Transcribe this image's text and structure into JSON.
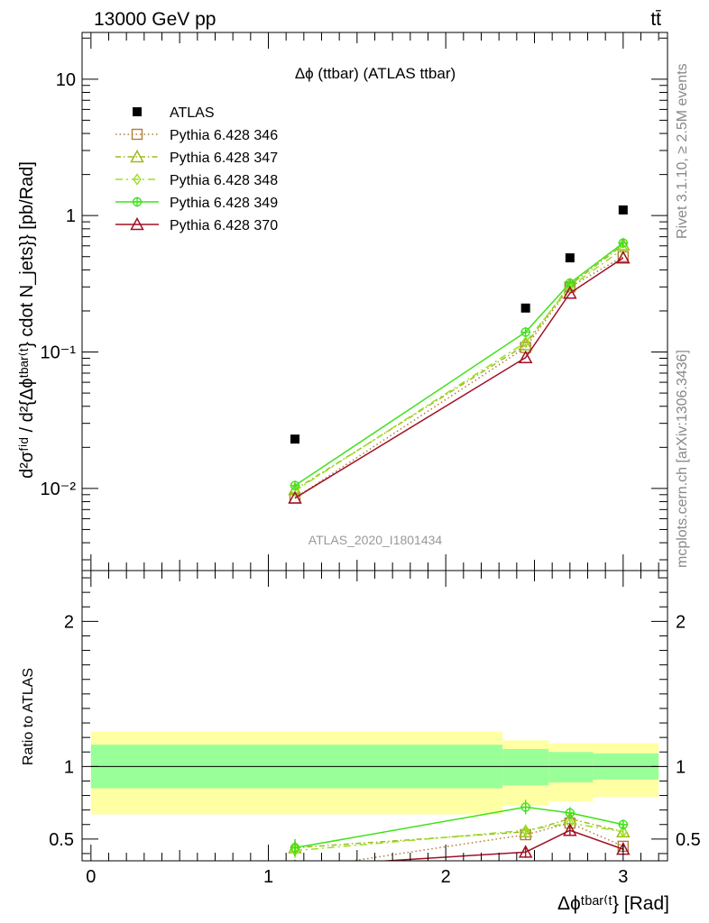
{
  "header": {
    "left": "13000 GeV pp",
    "right": "tt̄"
  },
  "side_labels": {
    "rivet": "Rivet 3.1.10, ≥ 2.5M events",
    "mcplots": "mcplots.cern.ch [arXiv:1306.3436]"
  },
  "main_plot": {
    "title": "Δϕ (ttbar) (ATLAS ttbar)",
    "watermark": "ATLAS_2020_I1801434",
    "ylabel": "d²σᶠⁱᵈ / d²{Δϕᵗᵇᵃʳ⁽ᵗ} cdot N_jets}} [pb/Rad]",
    "ytick_labels": [
      "10⁻²",
      "10⁻¹",
      "1",
      "10"
    ]
  },
  "ratio_plot": {
    "ylabel": "Ratio to ATLAS",
    "ytick_labels": [
      "0.5",
      "1",
      "2"
    ],
    "ytick_labels_right": [
      "0.5",
      "1",
      "2"
    ]
  },
  "x_axis": {
    "label": "Δϕᵗᵇᵃʳ⁽ᵗ} [Rad]",
    "tick_labels": [
      "0",
      "1",
      "2",
      "3"
    ]
  },
  "legend": {
    "data": "ATLAS",
    "mc": [
      "Pythia 6.428 346",
      "Pythia 6.428 347",
      "Pythia 6.428 348",
      "Pythia 6.428 349",
      "Pythia 6.428 370"
    ]
  },
  "chart_data": {
    "type": "scatter",
    "y_scale": "log",
    "xlim": [
      -0.05,
      3.25
    ],
    "ylim": [
      0.0025,
      22
    ],
    "ratio_ylim": [
      0.35,
      2.35
    ],
    "x": [
      1.15,
      2.45,
      2.7,
      3.0
    ],
    "bin_edges": [
      0.0,
      2.32,
      2.58,
      2.83,
      3.2
    ],
    "data": {
      "name": "ATLAS",
      "values": [
        0.023,
        0.21,
        0.49,
        1.1
      ]
    },
    "bands": {
      "inner": [
        [
          0.85,
          1.15
        ],
        [
          0.87,
          1.12
        ],
        [
          0.89,
          1.1
        ],
        [
          0.91,
          1.09
        ]
      ],
      "outer": [
        [
          0.67,
          1.24
        ],
        [
          0.73,
          1.18
        ],
        [
          0.76,
          1.16
        ],
        [
          0.79,
          1.16
        ]
      ]
    },
    "series": [
      {
        "name": "Pythia 6.428 346",
        "color": "#b07d3a",
        "dash": "1.5,3",
        "marker": "square",
        "values": [
          0.0085,
          0.108,
          0.3,
          0.5
        ],
        "ratio": [
          0.29,
          0.53,
          0.61,
          0.45
        ],
        "ratio_err": [
          0.02,
          0.03,
          0.03,
          0.02
        ]
      },
      {
        "name": "Pythia 6.428 347",
        "color": "#9dbb1c",
        "dash": "6,3,1.5,3",
        "marker": "triangle",
        "values": [
          0.0098,
          0.113,
          0.31,
          0.61
        ],
        "ratio": [
          0.44,
          0.55,
          0.64,
          0.55
        ],
        "ratio_err": [
          0.05,
          0.04,
          0.03,
          0.02
        ]
      },
      {
        "name": "Pythia 6.428 348",
        "color": "#9be020",
        "dash": "8,4,2,4",
        "marker": "diamond",
        "values": [
          0.0096,
          0.118,
          0.3,
          0.57
        ],
        "ratio": [
          0.42,
          0.56,
          0.61,
          0.55
        ],
        "ratio_err": [
          0.05,
          0.04,
          0.03,
          0.03
        ]
      },
      {
        "name": "Pythia 6.428 349",
        "color": "#3fe21a",
        "dash": "",
        "marker": "cross",
        "values": [
          0.0105,
          0.14,
          0.32,
          0.63
        ],
        "ratio": [
          0.44,
          0.72,
          0.68,
          0.6
        ],
        "ratio_err": [
          0.06,
          0.05,
          0.04,
          0.03
        ]
      },
      {
        "name": "Pythia 6.428 370",
        "color": "#a01024",
        "dash": "",
        "marker": "triangle-open",
        "values": [
          0.0085,
          0.091,
          0.27,
          0.49
        ],
        "ratio": [
          0.31,
          0.41,
          0.56,
          0.43
        ],
        "ratio_err": [
          0.02,
          0.04,
          0.03,
          0.02
        ]
      }
    ]
  }
}
